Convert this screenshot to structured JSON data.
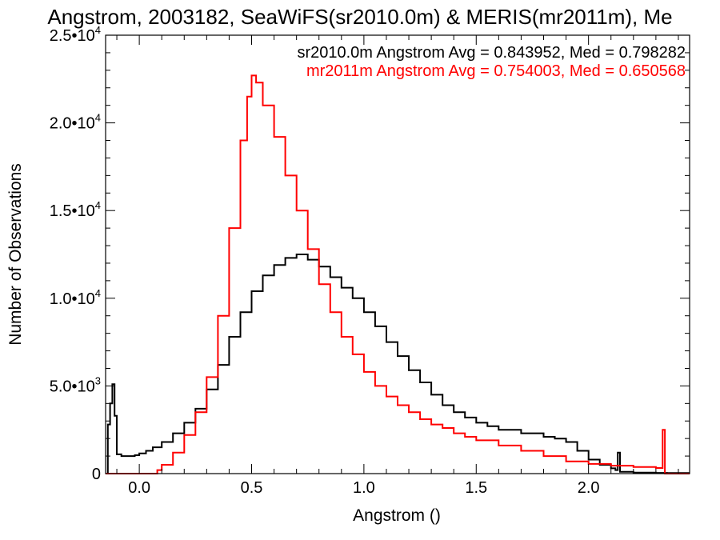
{
  "chart_data": {
    "type": "line",
    "title": "Angstrom, 2003182, SeaWiFS(sr2010.0m) & MERIS(mr2011m), Me",
    "xlabel": "Angstrom ()",
    "ylabel": "Number of Observations",
    "xlim": [
      -0.15,
      2.45
    ],
    "ylim": [
      0,
      25000
    ],
    "x_ticks": [
      {
        "value": 0.0,
        "label": "0.0"
      },
      {
        "value": 0.5,
        "label": "0.5"
      },
      {
        "value": 1.0,
        "label": "1.0"
      },
      {
        "value": 1.5,
        "label": "1.5"
      },
      {
        "value": 2.0,
        "label": "2.0"
      }
    ],
    "y_ticks": [
      {
        "value": 0,
        "label": "0"
      },
      {
        "value": 5000,
        "mant": "5.0",
        "exp": "3"
      },
      {
        "value": 10000,
        "mant": "1.0",
        "exp": "4"
      },
      {
        "value": 15000,
        "mant": "1.5",
        "exp": "4"
      },
      {
        "value": 20000,
        "mant": "2.0",
        "exp": "4"
      },
      {
        "value": 25000,
        "mant": "2.5",
        "exp": "4"
      }
    ],
    "series": [
      {
        "name": "sr2010.0m",
        "color": "#000000",
        "legend_text": "sr2010.0m Angstrom Avg = 0.843952, Med = 0.798282",
        "points": [
          [
            -0.15,
            0
          ],
          [
            -0.14,
            2800
          ],
          [
            -0.13,
            4000
          ],
          [
            -0.12,
            5100
          ],
          [
            -0.11,
            3300
          ],
          [
            -0.1,
            1100
          ],
          [
            -0.08,
            1000
          ],
          [
            -0.05,
            1000
          ],
          [
            -0.02,
            1050
          ],
          [
            0.0,
            1150
          ],
          [
            0.03,
            1300
          ],
          [
            0.06,
            1500
          ],
          [
            0.1,
            1800
          ],
          [
            0.15,
            2300
          ],
          [
            0.2,
            2900
          ],
          [
            0.25,
            3700
          ],
          [
            0.3,
            4800
          ],
          [
            0.35,
            6200
          ],
          [
            0.4,
            7800
          ],
          [
            0.45,
            9200
          ],
          [
            0.5,
            10400
          ],
          [
            0.55,
            11300
          ],
          [
            0.6,
            11900
          ],
          [
            0.65,
            12300
          ],
          [
            0.7,
            12500
          ],
          [
            0.75,
            12200
          ],
          [
            0.8,
            11800
          ],
          [
            0.85,
            11200
          ],
          [
            0.9,
            10600
          ],
          [
            0.95,
            10000
          ],
          [
            1.0,
            9200
          ],
          [
            1.05,
            8400
          ],
          [
            1.1,
            7500
          ],
          [
            1.15,
            6700
          ],
          [
            1.2,
            5900
          ],
          [
            1.25,
            5200
          ],
          [
            1.3,
            4500
          ],
          [
            1.35,
            3900
          ],
          [
            1.4,
            3500
          ],
          [
            1.45,
            3200
          ],
          [
            1.5,
            2900
          ],
          [
            1.55,
            2700
          ],
          [
            1.6,
            2500
          ],
          [
            1.7,
            2300
          ],
          [
            1.8,
            2100
          ],
          [
            1.85,
            2000
          ],
          [
            1.9,
            1800
          ],
          [
            1.95,
            1300
          ],
          [
            2.0,
            800
          ],
          [
            2.05,
            500
          ],
          [
            2.1,
            300
          ],
          [
            2.12,
            200
          ],
          [
            2.13,
            1200
          ],
          [
            2.14,
            100
          ],
          [
            2.2,
            60
          ],
          [
            2.3,
            40
          ],
          [
            2.35,
            30
          ],
          [
            2.45,
            30
          ]
        ]
      },
      {
        "name": "mr2011m",
        "color": "#ff0000",
        "legend_text": "mr2011m Angstrom Avg = 0.754003, Med = 0.650568",
        "points": [
          [
            -0.15,
            0
          ],
          [
            0.05,
            0
          ],
          [
            0.08,
            200
          ],
          [
            0.1,
            500
          ],
          [
            0.15,
            1200
          ],
          [
            0.2,
            2200
          ],
          [
            0.25,
            3500
          ],
          [
            0.3,
            5500
          ],
          [
            0.35,
            9000
          ],
          [
            0.4,
            14000
          ],
          [
            0.45,
            19000
          ],
          [
            0.48,
            21500
          ],
          [
            0.5,
            22700
          ],
          [
            0.52,
            22300
          ],
          [
            0.55,
            21000
          ],
          [
            0.6,
            19200
          ],
          [
            0.65,
            17000
          ],
          [
            0.7,
            15000
          ],
          [
            0.75,
            12800
          ],
          [
            0.8,
            10800
          ],
          [
            0.85,
            9200
          ],
          [
            0.9,
            7800
          ],
          [
            0.95,
            6800
          ],
          [
            1.0,
            5800
          ],
          [
            1.05,
            5000
          ],
          [
            1.1,
            4400
          ],
          [
            1.15,
            3900
          ],
          [
            1.2,
            3500
          ],
          [
            1.25,
            3100
          ],
          [
            1.3,
            2800
          ],
          [
            1.35,
            2600
          ],
          [
            1.4,
            2300
          ],
          [
            1.45,
            2100
          ],
          [
            1.5,
            1900
          ],
          [
            1.6,
            1600
          ],
          [
            1.7,
            1300
          ],
          [
            1.8,
            1000
          ],
          [
            1.9,
            700
          ],
          [
            2.0,
            550
          ],
          [
            2.1,
            450
          ],
          [
            2.2,
            380
          ],
          [
            2.3,
            320
          ],
          [
            2.33,
            2500
          ],
          [
            2.34,
            0
          ],
          [
            2.45,
            0
          ]
        ]
      }
    ],
    "grid": false,
    "legend_position": "top-right"
  }
}
